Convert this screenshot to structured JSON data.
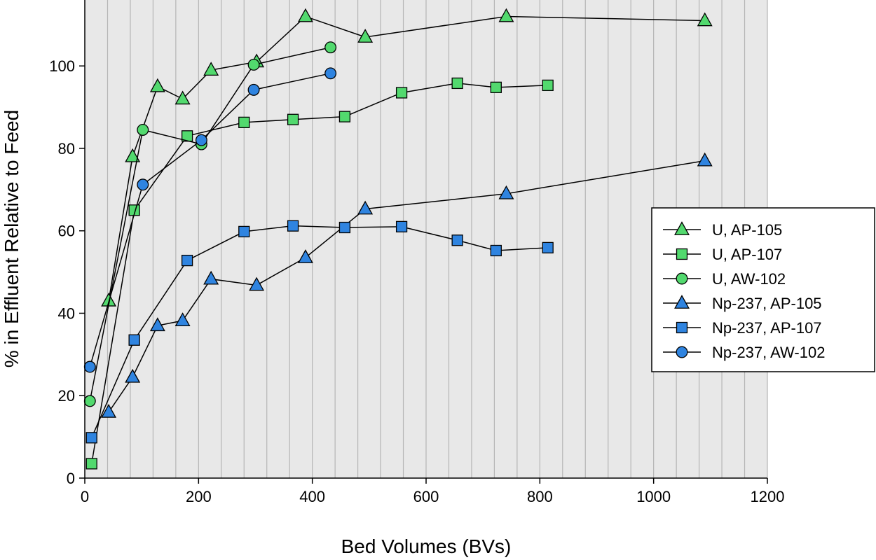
{
  "chart_data": {
    "type": "line",
    "title": "",
    "xlabel": "Bed Volumes (BVs)",
    "ylabel": "% in Effluent Relative to Feed",
    "xlim": [
      0,
      1200
    ],
    "ylim": [
      0,
      116
    ],
    "xticks": [
      0,
      200,
      400,
      600,
      800,
      1000,
      1200
    ],
    "yticks": [
      0,
      20,
      40,
      60,
      80,
      100
    ],
    "x_minor_gridlines": [
      0,
      40,
      80,
      120,
      160,
      200,
      240,
      280,
      320,
      360,
      400,
      440,
      480,
      520,
      560,
      600,
      640,
      680,
      720,
      760,
      800,
      840,
      880,
      920,
      960,
      1000,
      1040,
      1080,
      1120,
      1160,
      1200
    ],
    "grid": "vertical",
    "background_color": "#e8e8e8",
    "grid_color": "#b5b5b5",
    "legend_position": "right",
    "colors": {
      "green": "#52d96e",
      "blue": "#2f84e0",
      "line": "#000000"
    },
    "series": [
      {
        "name": "U, AP-105",
        "marker": "triangle",
        "color": "#52d96e",
        "points": [
          [
            42,
            43
          ],
          [
            84,
            78
          ],
          [
            128,
            95
          ],
          [
            172,
            92
          ],
          [
            222,
            99
          ],
          [
            302,
            101
          ],
          [
            388,
            112
          ],
          [
            493,
            107
          ],
          [
            741,
            112
          ],
          [
            1090,
            111
          ]
        ]
      },
      {
        "name": "U, AP-107",
        "marker": "square",
        "color": "#52d96e",
        "points": [
          [
            12,
            3.5
          ],
          [
            87,
            65
          ],
          [
            180,
            83
          ],
          [
            280,
            86.3
          ],
          [
            366,
            87
          ],
          [
            457,
            87.7
          ],
          [
            557,
            93.5
          ],
          [
            655,
            95.8
          ],
          [
            723,
            94.8
          ],
          [
            814,
            95.3
          ]
        ]
      },
      {
        "name": "U, AW-102",
        "marker": "circle",
        "color": "#52d96e",
        "points": [
          [
            9,
            18.7
          ],
          [
            102,
            84.5
          ],
          [
            205,
            81
          ],
          [
            297,
            100.3
          ],
          [
            432,
            104.5
          ]
        ]
      },
      {
        "name": "Np-237, AP-105",
        "marker": "triangle",
        "color": "#2f84e0",
        "points": [
          [
            42,
            16
          ],
          [
            84,
            24.5
          ],
          [
            128,
            37
          ],
          [
            172,
            38.2
          ],
          [
            222,
            48.3
          ],
          [
            302,
            46.8
          ],
          [
            388,
            53.5
          ],
          [
            493,
            65.3
          ],
          [
            741,
            69
          ],
          [
            1090,
            77
          ]
        ]
      },
      {
        "name": "Np-237, AP-107",
        "marker": "square",
        "color": "#2f84e0",
        "points": [
          [
            12,
            9.8
          ],
          [
            87,
            33.5
          ],
          [
            180,
            52.8
          ],
          [
            280,
            59.8
          ],
          [
            366,
            61.2
          ],
          [
            457,
            60.8
          ],
          [
            557,
            61
          ],
          [
            655,
            57.7
          ],
          [
            723,
            55.2
          ],
          [
            814,
            55.9
          ]
        ]
      },
      {
        "name": "Np-237, AW-102",
        "marker": "circle",
        "color": "#2f84e0",
        "points": [
          [
            9,
            27
          ],
          [
            102,
            71.2
          ],
          [
            205,
            82
          ],
          [
            297,
            94.2
          ],
          [
            432,
            98.2
          ]
        ]
      }
    ]
  }
}
